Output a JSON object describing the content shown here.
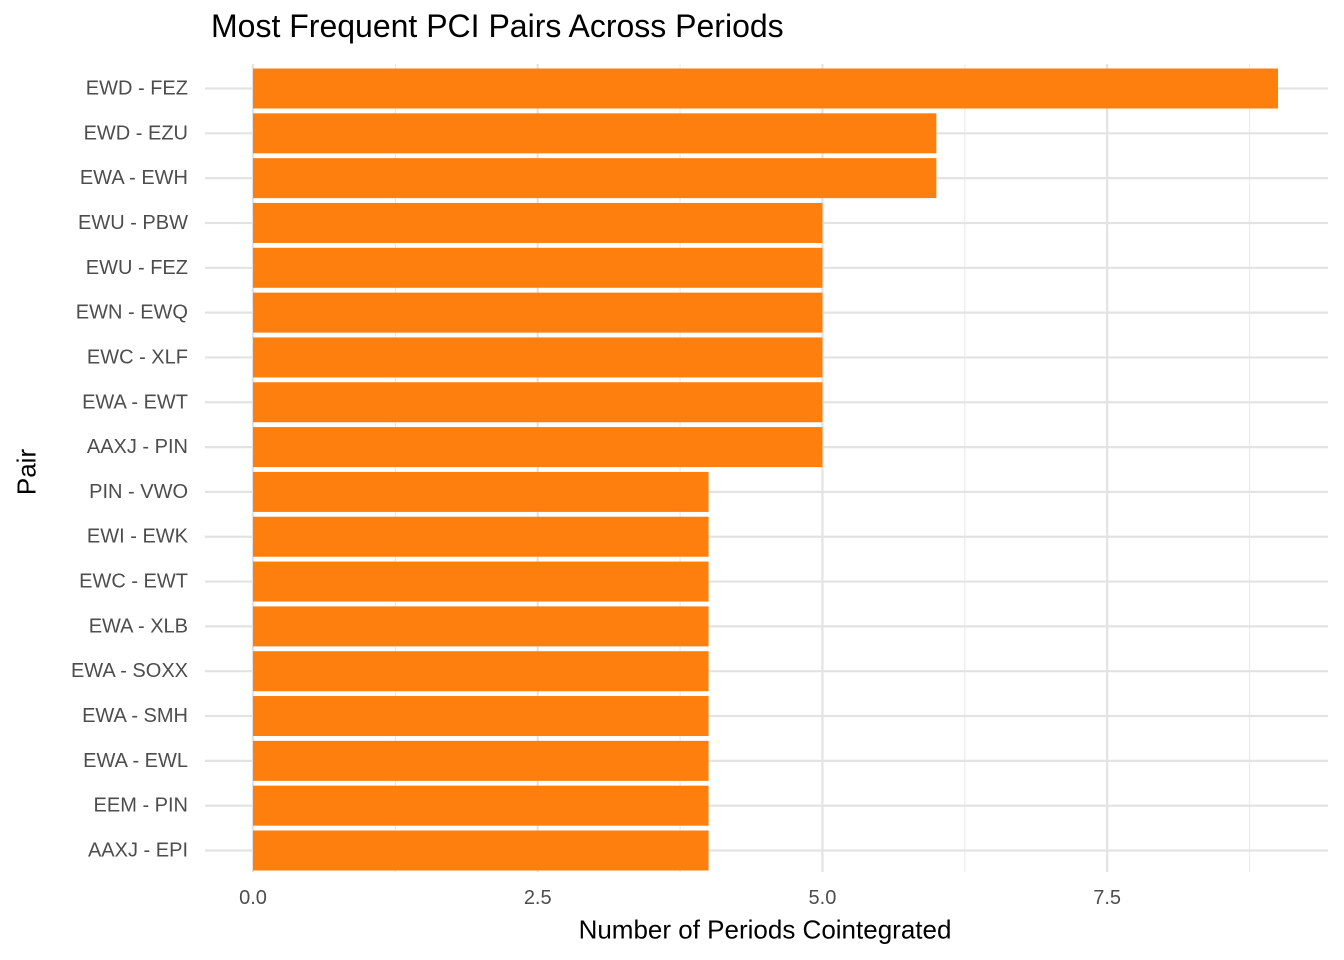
{
  "chart_data": {
    "type": "bar",
    "orientation": "horizontal",
    "title": "Most Frequent PCI Pairs Across Periods",
    "xlabel": "Number of Periods Cointegrated",
    "ylabel": "Pair",
    "categories": [
      "EWD - FEZ",
      "EWD - EZU",
      "EWA - EWH",
      "EWU - PBW",
      "EWU - FEZ",
      "EWN - EWQ",
      "EWC - XLF",
      "EWA - EWT",
      "AAXJ - PIN",
      "PIN - VWO",
      "EWI - EWK",
      "EWC - EWT",
      "EWA - XLB",
      "EWA - SOXX",
      "EWA - SMH",
      "EWA - EWL",
      "EEM - PIN",
      "AAXJ - EPI"
    ],
    "values": [
      9,
      6,
      6,
      5,
      5,
      5,
      5,
      5,
      5,
      4,
      4,
      4,
      4,
      4,
      4,
      4,
      4,
      4
    ],
    "xlim": [
      0,
      9
    ],
    "xticks": [
      "0.0",
      "2.5",
      "5.0",
      "7.5"
    ],
    "xtick_values": [
      0,
      2.5,
      5,
      7.5
    ],
    "grid": true,
    "bar_color": "#FF7F0E"
  }
}
